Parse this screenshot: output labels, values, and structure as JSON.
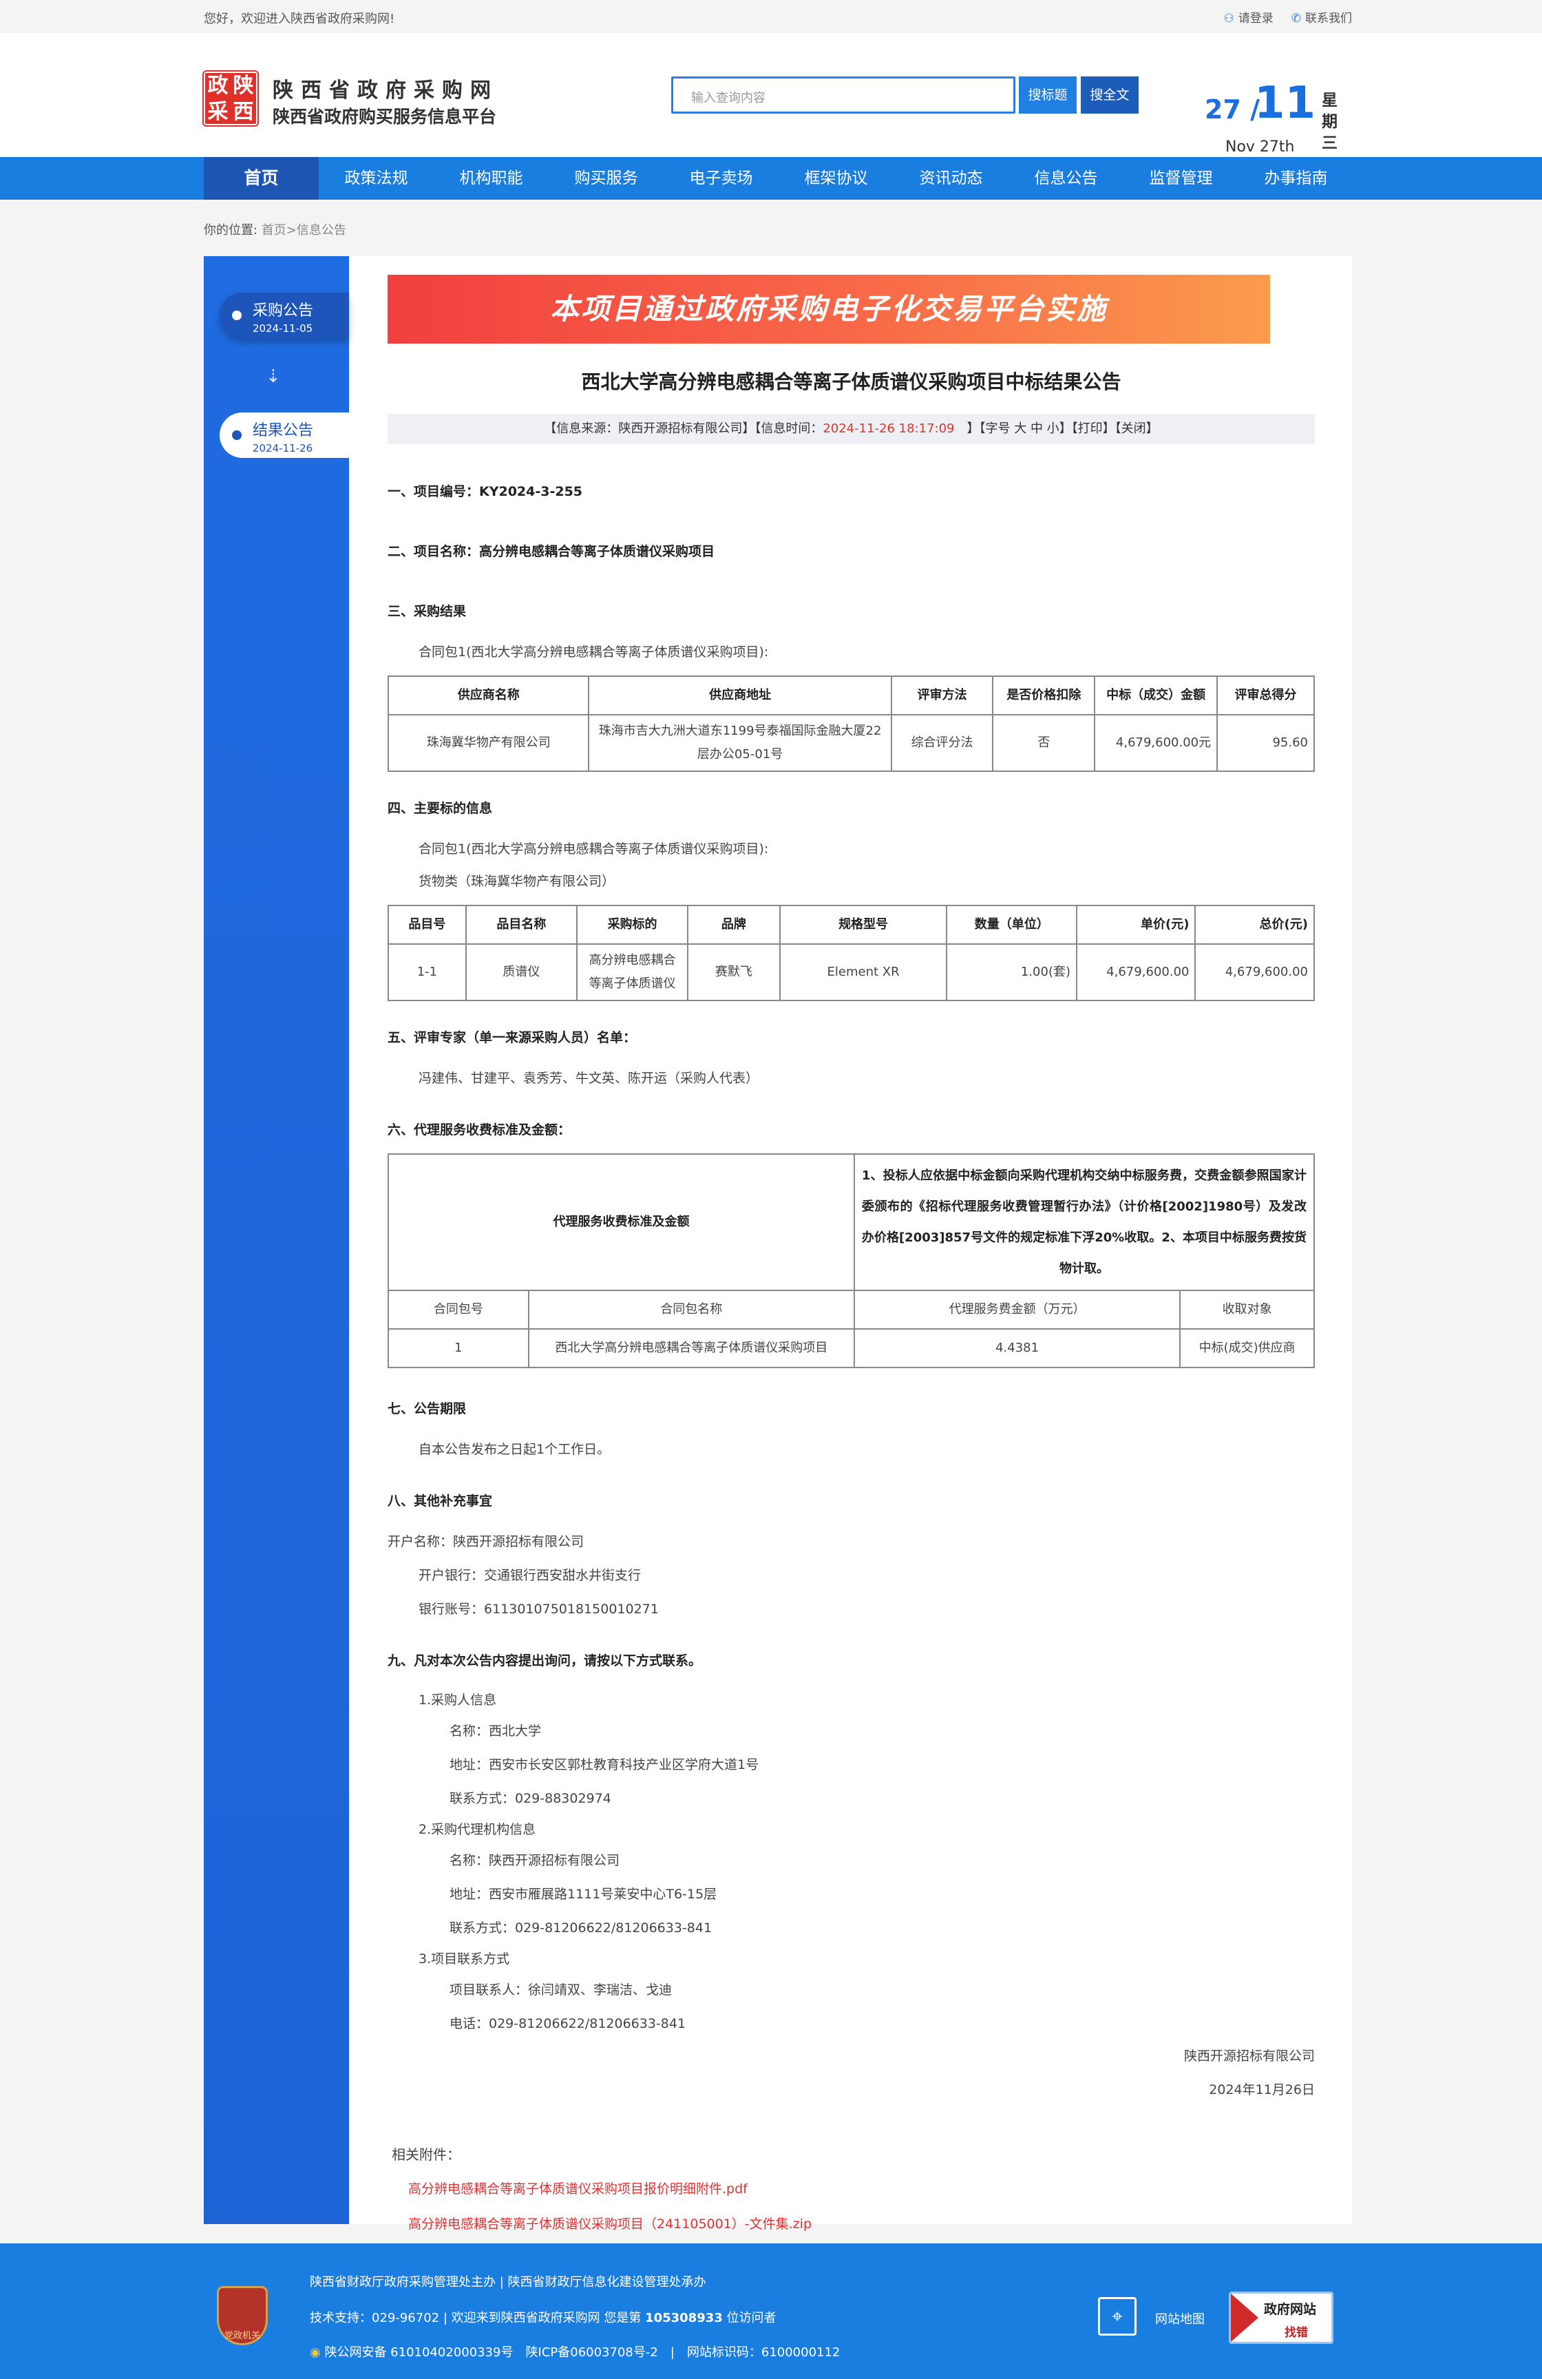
{
  "topbar": {
    "welcome": "您好，欢迎进入陕西省政府采购网!",
    "login": "请登录",
    "contact": "联系我们"
  },
  "header": {
    "logo_text": [
      "政",
      "陕",
      "采",
      "西"
    ],
    "title": "陕西省政府采购网",
    "subtitle": "陕西省政府购买服务信息平台",
    "search_placeholder": "输入查询内容",
    "search_title_btn": "搜标题",
    "search_full_btn": "搜全文",
    "date_day": "27",
    "date_month": "11",
    "date_en": "Nov 27th",
    "weekday": "星期三"
  },
  "nav": [
    "首页",
    "政策法规",
    "机构职能",
    "购买服务",
    "电子卖场",
    "框架协议",
    "资讯动态",
    "信息公告",
    "监督管理",
    "办事指南"
  ],
  "breadcrumb": {
    "label": "你的位置:",
    "home": "首页",
    "current": ">信息公告"
  },
  "sidebar": [
    {
      "label": "采购公告",
      "date": "2024-11-05"
    },
    {
      "label": "结果公告",
      "date": "2024-11-26"
    }
  ],
  "article": {
    "banner": "本项目通过政府采购电子化交易平台实施",
    "title": "西北大学高分辨电感耦合等离子体质谱仪采购项目中标结果公告",
    "info_prefix": "【信息来源：陕西开源招标有限公司】【信息时间：",
    "info_time": "2024-11-26 18:17:09",
    "info_suffix": "】【字号 大 中 小】【打印】【关闭】",
    "s1": "一、项目编号：KY2024-3-255",
    "s2": "二、项目名称：高分辨电感耦合等离子体质谱仪采购项目",
    "s3": "三、采购结果",
    "pkg": "合同包1(西北大学高分辨电感耦合等离子体质谱仪采购项目):",
    "t1_head": [
      "供应商名称",
      "供应商地址",
      "评审方法",
      "是否价格扣除",
      "中标（成交）金额",
      "评审总得分"
    ],
    "t1_row": [
      "珠海冀华物产有限公司",
      "珠海市吉大九洲大道东1199号泰福国际金融大厦22层办公05-01号",
      "综合评分法",
      "否",
      "4,679,600.00元",
      "95.60"
    ],
    "s4": "四、主要标的信息",
    "goods": "货物类（珠海冀华物产有限公司）",
    "t2_head": [
      "品目号",
      "品目名称",
      "采购标的",
      "品牌",
      "规格型号",
      "数量（单位）",
      "单价(元)",
      "总价(元)"
    ],
    "t2_row": [
      "1-1",
      "质谱仪",
      "高分辨电感耦合等离子体质谱仪",
      "赛默飞",
      "Element XR",
      "1.00(套)",
      "4,679,600.00",
      "4,679,600.00"
    ],
    "s5": "五、评审专家（单一来源采购人员）名单：",
    "experts": "冯建伟、甘建平、袁秀芳、牛文英、陈开运（采购人代表）",
    "s6": "六、代理服务收费标准及金额：",
    "t3_left": "代理服务收费标准及金额",
    "t3_right": "1、投标人应依据中标金额向采购代理机构交纳中标服务费，交费金额参照国家计委颁布的《招标代理服务收费管理暂行办法》（计价格[2002]1980号）及发改办价格[2003]857号文件的规定标准下浮20%收取。2、本项目中标服务费按货物计取。",
    "t3_head": [
      "合同包号",
      "合同包名称",
      "代理服务费金额（万元）",
      "收取对象"
    ],
    "t3_row": [
      "1",
      "西北大学高分辨电感耦合等离子体质谱仪采购项目",
      "4.4381",
      "中标(成交)供应商"
    ],
    "s7": "七、公告期限",
    "period": "自本公告发布之日起1个工作日。",
    "s8": "八、其他补充事宜",
    "acct_name": "开户名称：陕西开源招标有限公司",
    "bank": "开户银行：交通银行西安甜水井街支行",
    "acct_no": "银行账号：611301075018150010271",
    "s9": "九、凡对本次公告内容提出询问，请按以下方式联系。",
    "c1": "1.采购人信息",
    "c1_name": "名称：西北大学",
    "c1_addr": "地址：西安市长安区郭杜教育科技产业区学府大道1号",
    "c1_tel": "联系方式：029-88302974",
    "c2": "2.采购代理机构信息",
    "c2_name": "名称：陕西开源招标有限公司",
    "c2_addr": "地址：西安市雁展路1111号莱安中心T6-15层",
    "c2_tel": "联系方式：029-81206622/81206633-841",
    "c3": "3.项目联系方式",
    "c3_person": "项目联系人：徐闫靖双、李瑞洁、戈迪",
    "c3_tel": "电话：029-81206622/81206633-841",
    "sign_org": "陕西开源招标有限公司",
    "sign_date": "2024年11月26日",
    "att_label": "相关附件：",
    "attachments": [
      "高分辨电感耦合等离子体质谱仪采购项目报价明细附件.pdf",
      "高分辨电感耦合等离子体质谱仪采购项目（241105001）-文件集.zip"
    ]
  },
  "footer": {
    "line1": "陕西省财政厅政府采购管理处主办 | 陕西省财政厅信息化建设管理处承办",
    "line2_a": "技术支持：029-96702 | 欢迎来到陕西省政府采购网 您是第 ",
    "visitors": "105308933",
    "line2_b": " 位访问者",
    "line3": "陕公网安备 61010402000339号　陕ICP备06003708号-2　|　网站标识码：6100000112",
    "emblem": "党政机关",
    "sitemap": "网站地图",
    "badge_top": "政府网站",
    "badge_bottom": "找错"
  },
  "colors": {
    "primary": "#1a7de0",
    "nav_active": "#1c55b2",
    "accent_red": "#e6332a"
  }
}
